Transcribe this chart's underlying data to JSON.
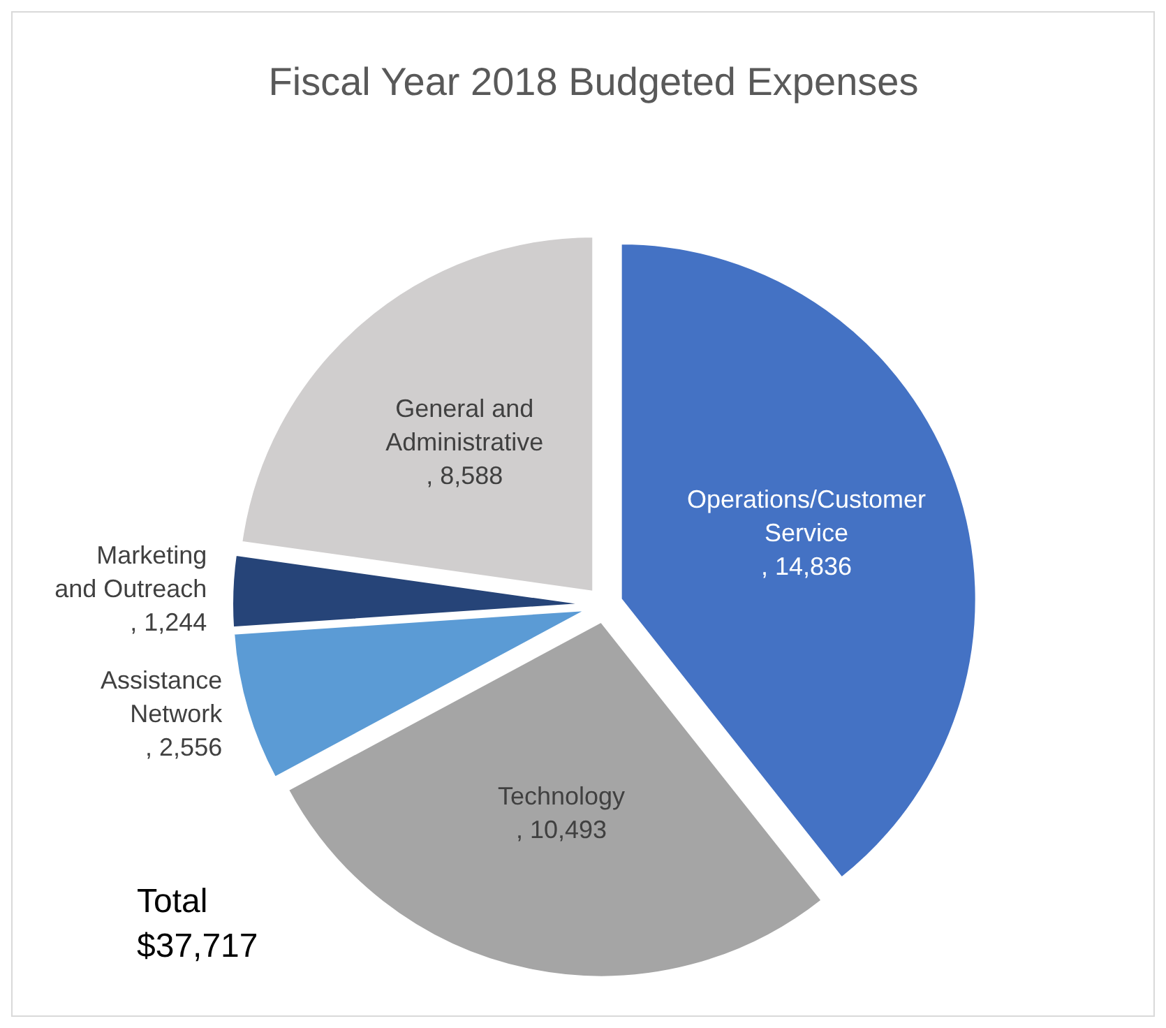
{
  "chart_data": {
    "type": "pie",
    "title": "Fiscal Year 2018 Budgeted Expenses",
    "categories": [
      "Operations/Customer Service",
      "Technology",
      "Assistance Network",
      "Marketing and Outreach",
      "General and Administrative"
    ],
    "values": [
      14836,
      10493,
      2556,
      1244,
      8588
    ],
    "colors": [
      "#4472c4",
      "#a5a5a5",
      "#5b9bd5",
      "#264478",
      "#d0cece"
    ],
    "value_labels": [
      ", 14,836",
      ", 10,493",
      ", 2,556",
      ", 1,244",
      ", 8,588"
    ],
    "annotations": [
      "Total\n$37,717"
    ]
  }
}
